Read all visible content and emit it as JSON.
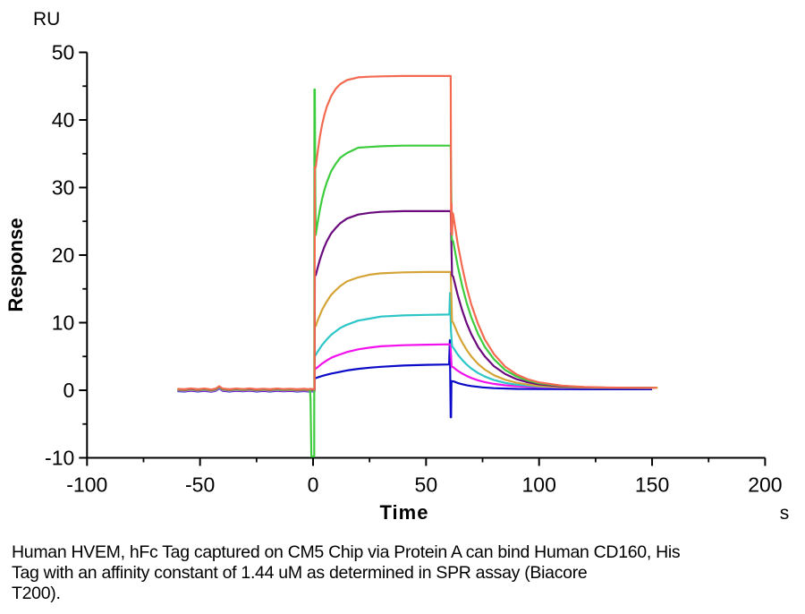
{
  "figure": {
    "background_color": "#FFFFFF",
    "axis_color": "#000000"
  },
  "caption_lines": [
    "Human HVEM, hFc Tag captured on CM5 Chip via Protein A can bind Human CD160, His",
    "Tag with an affinity constant of 1.44 uM as determined in SPR assay (Biacore",
    "T200)."
  ],
  "chart_data": {
    "type": "line",
    "title": "",
    "xlabel": "Time",
    "x_unit": "s",
    "ylabel": "Response",
    "y_unit": "RU",
    "xlim": [
      -100,
      200
    ],
    "ylim": [
      -10,
      50
    ],
    "x_major_ticks": [
      -100,
      -50,
      0,
      50,
      100,
      150,
      200
    ],
    "x_minor_ticks": [
      -75,
      -25,
      25,
      75,
      125,
      175
    ],
    "y_major_ticks": [
      -10,
      0,
      10,
      20,
      30,
      40,
      50
    ],
    "y_minor_ticks": [
      -5,
      5,
      15,
      25,
      35,
      45
    ],
    "grid": false,
    "legend": "none",
    "injection_start_s": 0,
    "injection_end_s": 60,
    "baseline_points": [
      [
        -60,
        0.05
      ],
      [
        -57,
        0.0
      ],
      [
        -54,
        0.12
      ],
      [
        -51,
        0.0
      ],
      [
        -48,
        0.1
      ],
      [
        -45,
        -0.05
      ],
      [
        -43,
        0.1
      ],
      [
        -41.5,
        0.45
      ],
      [
        -40,
        0.1
      ],
      [
        -37,
        0.0
      ],
      [
        -34,
        0.1
      ],
      [
        -31,
        0.02
      ],
      [
        -28,
        0.12
      ],
      [
        -25,
        0.0
      ],
      [
        -22,
        0.08
      ],
      [
        -19,
        0.0
      ],
      [
        -16,
        0.1
      ],
      [
        -13,
        0.02
      ],
      [
        -10,
        0.08
      ],
      [
        -7,
        0.0
      ],
      [
        -4,
        0.06
      ],
      [
        -2,
        0.0
      ],
      [
        -1.4,
        0.05
      ]
    ],
    "series": [
      {
        "name": "series-1",
        "color": "#F46A51",
        "plateau_ru": 46.5,
        "dissociation_start_ru": 26,
        "baseline_offset": 0.15,
        "points": [
          [
            0.65,
            0.15
          ],
          [
            0.8,
            33
          ],
          [
            1.2,
            33
          ],
          [
            2,
            35.2
          ],
          [
            3,
            37.5
          ],
          [
            4,
            39.3
          ],
          [
            5,
            40.7
          ],
          [
            6,
            41.9
          ],
          [
            8,
            43.5
          ],
          [
            10,
            44.6
          ],
          [
            12,
            45.3
          ],
          [
            15,
            45.9
          ],
          [
            20,
            46.3
          ],
          [
            25,
            46.4
          ],
          [
            30,
            46.45
          ],
          [
            40,
            46.5
          ],
          [
            50,
            46.5
          ],
          [
            60.9,
            46.5
          ],
          [
            61.1,
            23.5
          ],
          [
            61.3,
            27.6
          ],
          [
            61.5,
            23
          ],
          [
            61.8,
            26.2
          ],
          [
            62,
            26
          ],
          [
            64,
            21.7
          ],
          [
            66,
            18.2
          ],
          [
            68,
            15.2
          ],
          [
            70,
            12.7
          ],
          [
            73,
            9.8
          ],
          [
            76,
            7.5
          ],
          [
            80,
            5.35
          ],
          [
            85,
            3.5
          ],
          [
            90,
            2.36
          ],
          [
            95,
            1.62
          ],
          [
            100,
            1.16
          ],
          [
            110,
            0.68
          ],
          [
            120,
            0.48
          ],
          [
            130,
            0.4
          ],
          [
            140,
            0.37
          ],
          [
            152,
            0.36
          ]
        ]
      },
      {
        "name": "series-2",
        "color": "#3DCC3D",
        "plateau_ru": 36.2,
        "dissociation_start_ru": 22,
        "baseline_offset": 0.1,
        "points": [
          [
            -1.1,
            -1.3
          ],
          [
            -0.75,
            -9.8
          ],
          [
            0.5,
            -9.8
          ],
          [
            0.58,
            44.5
          ],
          [
            0.8,
            44.5
          ],
          [
            1.0,
            29
          ],
          [
            1.2,
            23
          ],
          [
            2,
            24.8
          ],
          [
            3,
            26.7
          ],
          [
            4,
            28.3
          ],
          [
            5,
            29.6
          ],
          [
            6,
            30.7
          ],
          [
            8,
            32.4
          ],
          [
            10,
            33.5
          ],
          [
            12,
            34.4
          ],
          [
            15,
            35.1
          ],
          [
            20,
            35.9
          ],
          [
            25,
            36
          ],
          [
            30,
            36.1
          ],
          [
            40,
            36.2
          ],
          [
            60.9,
            36.2
          ],
          [
            61.4,
            22.3
          ],
          [
            62,
            22
          ],
          [
            64,
            18.4
          ],
          [
            66,
            15.4
          ],
          [
            68,
            12.9
          ],
          [
            70,
            10.8
          ],
          [
            73,
            8.3
          ],
          [
            76,
            6.4
          ],
          [
            80,
            4.6
          ],
          [
            85,
            3
          ],
          [
            90,
            2.05
          ],
          [
            95,
            1.43
          ],
          [
            100,
            1.03
          ],
          [
            110,
            0.63
          ],
          [
            120,
            0.46
          ],
          [
            130,
            0.39
          ],
          [
            151,
            0.35
          ]
        ]
      },
      {
        "name": "series-3",
        "color": "#6A0A7D",
        "plateau_ru": 26.5,
        "dissociation_start_ru": 16.8,
        "baseline_offset": 0.06,
        "points": [
          [
            0.65,
            0.06
          ],
          [
            0.8,
            17
          ],
          [
            1.2,
            17
          ],
          [
            2,
            18.1
          ],
          [
            3,
            19.3
          ],
          [
            4,
            20.3
          ],
          [
            5,
            21.2
          ],
          [
            6,
            22
          ],
          [
            8,
            23.2
          ],
          [
            10,
            24
          ],
          [
            12,
            24.7
          ],
          [
            15,
            25.4
          ],
          [
            20,
            26
          ],
          [
            25,
            26.25
          ],
          [
            30,
            26.4
          ],
          [
            40,
            26.5
          ],
          [
            60.9,
            26.5
          ],
          [
            61.5,
            17
          ],
          [
            62,
            16.8
          ],
          [
            64,
            14.1
          ],
          [
            66,
            11.8
          ],
          [
            68,
            9.9
          ],
          [
            70,
            8.3
          ],
          [
            73,
            6.4
          ],
          [
            76,
            5
          ],
          [
            80,
            3.56
          ],
          [
            85,
            2.4
          ],
          [
            90,
            1.64
          ],
          [
            95,
            1.17
          ],
          [
            100,
            0.87
          ],
          [
            110,
            0.56
          ],
          [
            120,
            0.43
          ],
          [
            130,
            0.38
          ],
          [
            150,
            0.35
          ]
        ]
      },
      {
        "name": "series-4",
        "color": "#D4A437",
        "plateau_ru": 17.5,
        "dissociation_start_ru": 10,
        "baseline_offset": 0.0,
        "points": [
          [
            0.65,
            0
          ],
          [
            0.8,
            9.5
          ],
          [
            1.2,
            9.5
          ],
          [
            2,
            10.3
          ],
          [
            3,
            11.1
          ],
          [
            4,
            11.9
          ],
          [
            5,
            12.5
          ],
          [
            6,
            13.1
          ],
          [
            8,
            14.1
          ],
          [
            10,
            14.8
          ],
          [
            12,
            15.4
          ],
          [
            15,
            16.1
          ],
          [
            20,
            16.7
          ],
          [
            25,
            17.1
          ],
          [
            30,
            17.3
          ],
          [
            40,
            17.44
          ],
          [
            50,
            17.5
          ],
          [
            60.9,
            17.5
          ],
          [
            61.5,
            10.2
          ],
          [
            62,
            10
          ],
          [
            64,
            8.4
          ],
          [
            66,
            7.06
          ],
          [
            68,
            5.95
          ],
          [
            70,
            5.01
          ],
          [
            73,
            3.9
          ],
          [
            76,
            3.05
          ],
          [
            80,
            2.23
          ],
          [
            85,
            1.55
          ],
          [
            90,
            1.11
          ],
          [
            95,
            0.83
          ],
          [
            100,
            0.65
          ],
          [
            110,
            0.47
          ],
          [
            120,
            0.4
          ],
          [
            130,
            0.38
          ],
          [
            152.5,
            0.38
          ]
        ]
      },
      {
        "name": "series-5",
        "color": "#2CC6C8",
        "plateau_ru": 11.2,
        "dissociation_start_ru": 6.3,
        "baseline_offset": -0.06,
        "points": [
          [
            0.65,
            -0.06
          ],
          [
            0.8,
            5.2
          ],
          [
            1.2,
            5.2
          ],
          [
            2,
            5.7
          ],
          [
            4,
            6.7
          ],
          [
            6,
            7.5
          ],
          [
            8,
            8.2
          ],
          [
            10,
            8.7
          ],
          [
            12,
            9.2
          ],
          [
            15,
            9.7
          ],
          [
            20,
            10.3
          ],
          [
            25,
            10.6
          ],
          [
            30,
            10.9
          ],
          [
            40,
            11.07
          ],
          [
            50,
            11.15
          ],
          [
            60.3,
            11.2
          ],
          [
            60.6,
            14.4
          ],
          [
            61,
            9
          ],
          [
            61.5,
            6.5
          ],
          [
            62,
            6.3
          ],
          [
            64,
            5.3
          ],
          [
            66,
            4.48
          ],
          [
            68,
            3.8
          ],
          [
            70,
            3.22
          ],
          [
            73,
            2.54
          ],
          [
            76,
            2.02
          ],
          [
            80,
            1.51
          ],
          [
            85,
            1.09
          ],
          [
            90,
            0.82
          ],
          [
            100,
            0.54
          ],
          [
            110,
            0.43
          ],
          [
            120,
            0.38
          ],
          [
            149,
            0.33
          ]
        ]
      },
      {
        "name": "series-6",
        "color": "#F210EC",
        "plateau_ru": 6.8,
        "dissociation_start_ru": 3.4,
        "baseline_offset": -0.12,
        "points": [
          [
            0.65,
            -0.12
          ],
          [
            0.8,
            3.2
          ],
          [
            1.2,
            3.2
          ],
          [
            2,
            3.4
          ],
          [
            4,
            3.95
          ],
          [
            6,
            4.4
          ],
          [
            8,
            4.8
          ],
          [
            10,
            5.07
          ],
          [
            12,
            5.3
          ],
          [
            15,
            5.66
          ],
          [
            20,
            6.05
          ],
          [
            25,
            6.3
          ],
          [
            30,
            6.5
          ],
          [
            40,
            6.66
          ],
          [
            50,
            6.74
          ],
          [
            60.8,
            6.8
          ],
          [
            61.3,
            3.5
          ],
          [
            62,
            3.4
          ],
          [
            64,
            2.89
          ],
          [
            66,
            2.47
          ],
          [
            68,
            2.12
          ],
          [
            70,
            1.82
          ],
          [
            73,
            1.47
          ],
          [
            76,
            1.2
          ],
          [
            80,
            0.94
          ],
          [
            85,
            0.73
          ],
          [
            90,
            0.59
          ],
          [
            100,
            0.45
          ],
          [
            110,
            0.38
          ],
          [
            120,
            0.34
          ],
          [
            150,
            0.3
          ]
        ]
      },
      {
        "name": "series-7",
        "color": "#0A0AC8",
        "plateau_ru": 3.9,
        "dissociation_start_ru": 1.3,
        "baseline_offset": -0.18,
        "points": [
          [
            0.65,
            -0.18
          ],
          [
            0.8,
            1.8
          ],
          [
            1.2,
            1.8
          ],
          [
            2,
            1.89
          ],
          [
            4,
            2.1
          ],
          [
            6,
            2.29
          ],
          [
            8,
            2.46
          ],
          [
            10,
            2.6
          ],
          [
            15,
            2.93
          ],
          [
            20,
            3.16
          ],
          [
            25,
            3.34
          ],
          [
            30,
            3.47
          ],
          [
            40,
            3.66
          ],
          [
            50,
            3.76
          ],
          [
            60.2,
            3.82
          ],
          [
            60.5,
            7.4
          ],
          [
            60.9,
            -4
          ],
          [
            61.05,
            -4
          ],
          [
            61.2,
            1.35
          ],
          [
            62.3,
            1.3
          ],
          [
            64,
            1.07
          ],
          [
            66,
            0.89
          ],
          [
            68,
            0.74
          ],
          [
            70,
            0.62
          ],
          [
            75,
            0.43
          ],
          [
            80,
            0.31
          ],
          [
            90,
            0.2
          ],
          [
            100,
            0.17
          ],
          [
            120,
            0.15
          ],
          [
            150,
            0.15
          ]
        ]
      }
    ]
  }
}
